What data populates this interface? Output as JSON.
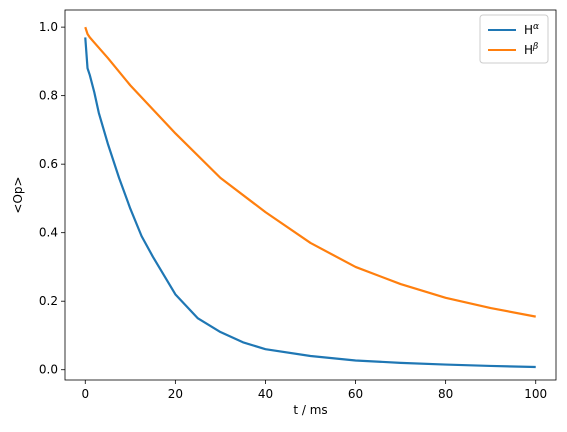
{
  "chart_data": {
    "type": "line",
    "title": "",
    "xlabel": "t / ms",
    "ylabel": "<Op>",
    "xlim": [
      -4.5,
      104.5
    ],
    "ylim": [
      -0.03,
      1.05
    ],
    "xticks": [
      0,
      20,
      40,
      60,
      80,
      100
    ],
    "xtick_labels": [
      "0",
      "20",
      "40",
      "60",
      "80",
      "100"
    ],
    "yticks": [
      0.0,
      0.2,
      0.4,
      0.6,
      0.8,
      1.0
    ],
    "ytick_labels": [
      "0.0",
      "0.2",
      "0.4",
      "0.6",
      "0.8",
      "1.0"
    ],
    "grid": false,
    "legend_position": "top-right",
    "series": [
      {
        "name": "H",
        "name_superscript": "α",
        "color": "#1f77b4",
        "x": [
          0,
          0.5,
          1,
          2,
          3,
          5,
          7.5,
          10,
          12.5,
          15,
          20,
          25,
          30,
          35,
          40,
          50,
          60,
          70,
          80,
          90,
          100
        ],
        "y": [
          0.97,
          0.88,
          0.86,
          0.81,
          0.75,
          0.66,
          0.56,
          0.47,
          0.39,
          0.33,
          0.22,
          0.15,
          0.11,
          0.08,
          0.06,
          0.04,
          0.027,
          0.02,
          0.015,
          0.011,
          0.008
        ]
      },
      {
        "name": "H",
        "name_superscript": "β",
        "color": "#ff7f0e",
        "x": [
          0,
          0.5,
          1,
          2,
          5,
          10,
          15,
          20,
          30,
          40,
          50,
          60,
          70,
          80,
          90,
          100
        ],
        "y": [
          1.0,
          0.98,
          0.97,
          0.955,
          0.91,
          0.83,
          0.76,
          0.69,
          0.56,
          0.46,
          0.37,
          0.3,
          0.25,
          0.21,
          0.18,
          0.155
        ]
      }
    ]
  }
}
